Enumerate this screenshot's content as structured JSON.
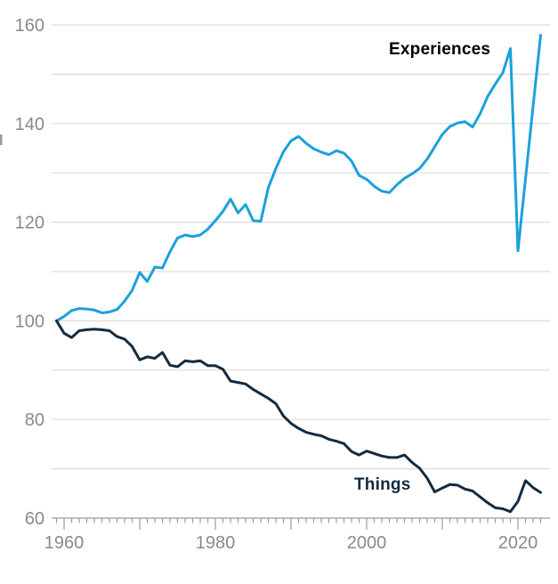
{
  "chart_data": {
    "type": "line",
    "title": "",
    "xlabel": "",
    "ylabel": "",
    "ylim": [
      60,
      160
    ],
    "grid_step": 10,
    "grid_on": true,
    "yticks": [
      60,
      80,
      100,
      120,
      140,
      160
    ],
    "xtick_labels": [
      1960,
      1980,
      2000,
      2020
    ],
    "decade_ticks": [
      1960,
      1970,
      1980,
      1990,
      2000,
      2010,
      2020
    ],
    "legend_position": "inline-annotations",
    "x": [
      1959,
      1960,
      1961,
      1962,
      1963,
      1964,
      1965,
      1966,
      1967,
      1968,
      1969,
      1970,
      1971,
      1972,
      1973,
      1974,
      1975,
      1976,
      1977,
      1978,
      1979,
      1980,
      1981,
      1982,
      1983,
      1984,
      1985,
      1986,
      1987,
      1988,
      1989,
      1990,
      1991,
      1992,
      1993,
      1994,
      1995,
      1996,
      1997,
      1998,
      1999,
      2000,
      2001,
      2002,
      2003,
      2004,
      2005,
      2006,
      2007,
      2008,
      2009,
      2010,
      2011,
      2012,
      2013,
      2014,
      2015,
      2016,
      2017,
      2018,
      2019,
      2020,
      2021,
      2022,
      2023
    ],
    "series": [
      {
        "name": "Experiences",
        "color": "#1CA0DC",
        "label_color": "#000000",
        "values": [
          100,
          100.9,
          102.1,
          102.5,
          102.4,
          102.2,
          101.6,
          101.8,
          102.3,
          104.0,
          106.2,
          109.8,
          108.0,
          110.9,
          110.7,
          114.0,
          116.8,
          117.4,
          117.1,
          117.4,
          118.6,
          120.3,
          122.2,
          124.7,
          121.9,
          123.6,
          120.3,
          120.2,
          127.0,
          130.9,
          134.3,
          136.5,
          137.4,
          136.0,
          134.9,
          134.2,
          133.7,
          134.5,
          134.0,
          132.4,
          129.5,
          128.7,
          127.3,
          126.3,
          126.0,
          127.6,
          128.9,
          129.8,
          130.9,
          132.8,
          135.3,
          137.8,
          139.4,
          140.1,
          140.4,
          139.3,
          142.0,
          145.5,
          148.0,
          150.3,
          155.2,
          114.2,
          128.8,
          143.5,
          157.9
        ]
      },
      {
        "name": "Things",
        "color": "#142B3E",
        "label_color": "#13293C",
        "values": [
          100,
          97.5,
          96.6,
          98.0,
          98.2,
          98.3,
          98.2,
          98.0,
          96.8,
          96.3,
          94.8,
          92.1,
          92.7,
          92.4,
          93.6,
          91.0,
          90.7,
          91.9,
          91.7,
          91.9,
          90.9,
          90.9,
          90.2,
          87.8,
          87.5,
          87.2,
          86.1,
          85.2,
          84.3,
          83.2,
          80.7,
          79.2,
          78.2,
          77.4,
          77.0,
          76.7,
          76.0,
          75.6,
          75.1,
          73.5,
          72.8,
          73.6,
          73.1,
          72.6,
          72.3,
          72.3,
          72.8,
          71.3,
          70.1,
          68.1,
          65.3,
          66.1,
          66.8,
          66.7,
          65.9,
          65.5,
          64.3,
          63.1,
          62.1,
          61.9,
          61.3,
          63.4,
          67.6,
          66.2,
          65.2
        ]
      }
    ],
    "axis_colors": {
      "grid": "#DCDCDC",
      "axis_line": "#9B9B9B",
      "tick": "#9B9B9B",
      "tick_label": "#8A8A8A"
    }
  }
}
